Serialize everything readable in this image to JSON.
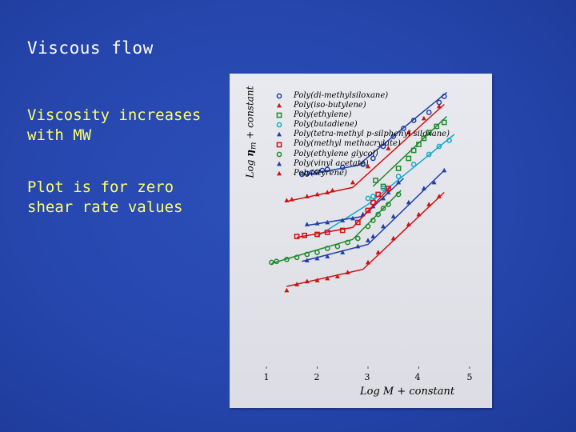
{
  "slide": {
    "title": "Viscous flow",
    "bullets": [
      "Viscosity increases with MW",
      "Plot is for zero shear rate values"
    ]
  },
  "chart_data": {
    "type": "scatter",
    "xlabel": "Log M + constant",
    "ylabel_prefix": "Log ",
    "ylabel_symbol": "η",
    "ylabel_sub": "m",
    "ylabel_suffix": " + constant",
    "xticks": [
      "1",
      "2",
      "3",
      "4",
      "5"
    ],
    "xlim": [
      1,
      5
    ],
    "ylim": [
      0,
      14
    ],
    "series": [
      {
        "name": "Poly(di-methylsiloxane)",
        "color": "#1f3fa8",
        "marker": "circle",
        "points": [
          [
            1.7,
            9.6
          ],
          [
            1.8,
            9.65
          ],
          [
            1.9,
            9.7
          ],
          [
            2.0,
            9.72
          ],
          [
            2.1,
            9.8
          ],
          [
            2.2,
            9.85
          ],
          [
            2.5,
            9.95
          ],
          [
            2.9,
            10.1
          ],
          [
            3.1,
            10.4
          ],
          [
            3.3,
            11.0
          ],
          [
            3.5,
            11.5
          ],
          [
            3.7,
            11.9
          ],
          [
            3.9,
            12.3
          ],
          [
            4.2,
            12.7
          ],
          [
            4.4,
            13.2
          ],
          [
            4.5,
            13.5
          ]
        ],
        "fit": [
          [
            1.7,
            9.55
          ],
          [
            2.8,
            10.05
          ],
          [
            4.55,
            13.7
          ]
        ]
      },
      {
        "name": "Poly(iso-butylene)",
        "color": "#d01010",
        "marker": "triangle",
        "points": [
          [
            1.4,
            8.3
          ],
          [
            1.5,
            8.35
          ],
          [
            1.8,
            8.5
          ],
          [
            2.0,
            8.6
          ],
          [
            2.2,
            8.7
          ],
          [
            2.3,
            8.8
          ],
          [
            2.7,
            9.2
          ],
          [
            3.0,
            10.0
          ],
          [
            3.4,
            10.9
          ],
          [
            3.8,
            11.7
          ],
          [
            4.1,
            12.4
          ],
          [
            4.4,
            13.0
          ]
        ],
        "fit": [
          [
            1.4,
            8.25
          ],
          [
            2.7,
            8.95
          ],
          [
            4.5,
            13.1
          ]
        ]
      },
      {
        "name": "Poly(ethylene)",
        "color": "#1f8a2a",
        "marker": "square",
        "points": [
          [
            3.15,
            9.3
          ],
          [
            3.3,
            9.0
          ],
          [
            3.6,
            9.9
          ],
          [
            3.8,
            10.4
          ],
          [
            3.9,
            10.8
          ],
          [
            4.0,
            11.1
          ],
          [
            4.1,
            11.4
          ],
          [
            4.2,
            11.7
          ],
          [
            4.35,
            12.0
          ],
          [
            4.5,
            12.2
          ]
        ],
        "fit": [
          [
            3.1,
            9.0
          ],
          [
            4.55,
            12.5
          ]
        ]
      },
      {
        "name": "Poly(butadiene)",
        "color": "#17a7c9",
        "marker": "circle",
        "points": [
          [
            3.0,
            8.4
          ],
          [
            3.1,
            8.5
          ],
          [
            3.3,
            8.9
          ],
          [
            3.6,
            9.5
          ],
          [
            3.9,
            10.1
          ],
          [
            4.2,
            10.6
          ],
          [
            4.4,
            11.0
          ],
          [
            4.6,
            11.3
          ]
        ],
        "fit": [
          [
            2.0,
            6.5
          ],
          [
            3.0,
            8.1
          ],
          [
            4.7,
            11.6
          ]
        ]
      },
      {
        "name": "Poly(tetra-methyl p-silphenyl siloxane)",
        "color": "#1f3fa8",
        "marker": "triangle",
        "points": [
          [
            1.8,
            7.1
          ],
          [
            2.0,
            7.15
          ],
          [
            2.2,
            7.2
          ],
          [
            2.5,
            7.3
          ],
          [
            2.7,
            7.4
          ],
          [
            2.9,
            7.6
          ],
          [
            3.1,
            8.0
          ],
          [
            3.3,
            8.4
          ],
          [
            3.4,
            8.7
          ],
          [
            3.6,
            9.2
          ]
        ],
        "fit": [
          [
            1.8,
            7.05
          ],
          [
            2.9,
            7.5
          ],
          [
            3.7,
            9.4
          ]
        ]
      },
      {
        "name": "Poly(methyl methacrylate)",
        "color": "#d01010",
        "marker": "square",
        "points": [
          [
            1.6,
            6.5
          ],
          [
            1.75,
            6.55
          ],
          [
            2.0,
            6.6
          ],
          [
            2.2,
            6.7
          ],
          [
            2.5,
            6.8
          ],
          [
            2.8,
            7.2
          ],
          [
            3.0,
            7.8
          ],
          [
            3.1,
            8.2
          ],
          [
            3.2,
            8.6
          ],
          [
            3.4,
            8.9
          ]
        ],
        "fit": [
          [
            1.6,
            6.45
          ],
          [
            2.7,
            6.95
          ],
          [
            3.45,
            9.0
          ]
        ]
      },
      {
        "name": "Poly(ethylene glycol)",
        "color": "#1f8a2a",
        "marker": "circle",
        "points": [
          [
            1.1,
            5.2
          ],
          [
            1.2,
            5.25
          ],
          [
            1.4,
            5.35
          ],
          [
            1.6,
            5.45
          ],
          [
            1.8,
            5.6
          ],
          [
            2.0,
            5.7
          ],
          [
            2.2,
            5.9
          ],
          [
            2.4,
            6.0
          ],
          [
            2.6,
            6.2
          ],
          [
            2.8,
            6.4
          ],
          [
            3.0,
            7.0
          ],
          [
            3.1,
            7.3
          ],
          [
            3.2,
            7.6
          ],
          [
            3.3,
            7.9
          ],
          [
            3.4,
            8.1
          ],
          [
            3.6,
            8.6
          ]
        ],
        "fit": [
          [
            1.1,
            5.15
          ],
          [
            2.7,
            6.35
          ],
          [
            3.65,
            8.8
          ]
        ]
      },
      {
        "name": "Poly(vinyl acetate)",
        "color": "#1f3fa8",
        "marker": "triangle",
        "points": [
          [
            1.8,
            5.3
          ],
          [
            2.0,
            5.4
          ],
          [
            2.2,
            5.5
          ],
          [
            2.5,
            5.7
          ],
          [
            2.8,
            6.0
          ],
          [
            3.0,
            6.3
          ],
          [
            3.1,
            6.5
          ],
          [
            3.3,
            7.0
          ],
          [
            3.5,
            7.5
          ],
          [
            3.8,
            8.2
          ],
          [
            4.1,
            8.9
          ],
          [
            4.3,
            9.2
          ],
          [
            4.5,
            9.8
          ]
        ],
        "fit": [
          [
            1.7,
            5.25
          ],
          [
            3.0,
            6.1
          ],
          [
            4.5,
            9.8
          ]
        ]
      },
      {
        "name": "Poly(styrene)",
        "color": "#d01010",
        "marker": "triangle",
        "points": [
          [
            1.4,
            3.8
          ],
          [
            1.6,
            4.1
          ],
          [
            1.8,
            4.25
          ],
          [
            2.0,
            4.3
          ],
          [
            2.2,
            4.4
          ],
          [
            2.4,
            4.5
          ],
          [
            2.6,
            4.7
          ],
          [
            3.0,
            5.2
          ],
          [
            3.2,
            5.7
          ],
          [
            3.5,
            6.4
          ],
          [
            3.8,
            7.1
          ],
          [
            4.0,
            7.6
          ],
          [
            4.2,
            8.1
          ],
          [
            4.4,
            8.5
          ]
        ],
        "fit": [
          [
            1.4,
            4.0
          ],
          [
            2.9,
            4.85
          ],
          [
            4.5,
            8.7
          ]
        ]
      }
    ]
  }
}
